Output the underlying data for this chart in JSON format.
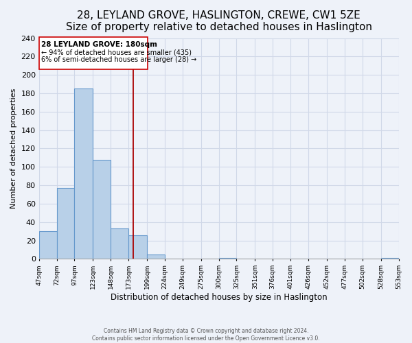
{
  "title": "28, LEYLAND GROVE, HASLINGTON, CREWE, CW1 5ZE",
  "subtitle": "Size of property relative to detached houses in Haslington",
  "xlabel": "Distribution of detached houses by size in Haslington",
  "ylabel": "Number of detached properties",
  "bar_edges": [
    47,
    72,
    97,
    123,
    148,
    173,
    199,
    224,
    249,
    275,
    300,
    325,
    351,
    376,
    401,
    426,
    452,
    477,
    502,
    528,
    553
  ],
  "bar_heights": [
    30,
    77,
    185,
    108,
    33,
    26,
    5,
    0,
    0,
    0,
    1,
    0,
    0,
    0,
    0,
    0,
    0,
    0,
    0,
    1
  ],
  "bar_color": "#b8d0e8",
  "bar_edge_color": "#6699cc",
  "vline_x": 180,
  "vline_color": "#aa0000",
  "ylim": [
    0,
    240
  ],
  "yticks": [
    0,
    20,
    40,
    60,
    80,
    100,
    120,
    140,
    160,
    180,
    200,
    220,
    240
  ],
  "annotation_title": "28 LEYLAND GROVE: 180sqm",
  "annotation_line1": "← 94% of detached houses are smaller (435)",
  "annotation_line2": "6% of semi-detached houses are larger (28) →",
  "footer1": "Contains HM Land Registry data © Crown copyright and database right 2024.",
  "footer2": "Contains public sector information licensed under the Open Government Licence v3.0.",
  "background_color": "#eef2f9",
  "plot_bg_color": "#eef2f9",
  "grid_color": "#d0d8e8",
  "title_fontsize": 11,
  "subtitle_fontsize": 9,
  "tick_labels": [
    "47sqm",
    "72sqm",
    "97sqm",
    "123sqm",
    "148sqm",
    "173sqm",
    "199sqm",
    "224sqm",
    "249sqm",
    "275sqm",
    "300sqm",
    "325sqm",
    "351sqm",
    "376sqm",
    "401sqm",
    "426sqm",
    "452sqm",
    "477sqm",
    "502sqm",
    "528sqm",
    "553sqm"
  ]
}
